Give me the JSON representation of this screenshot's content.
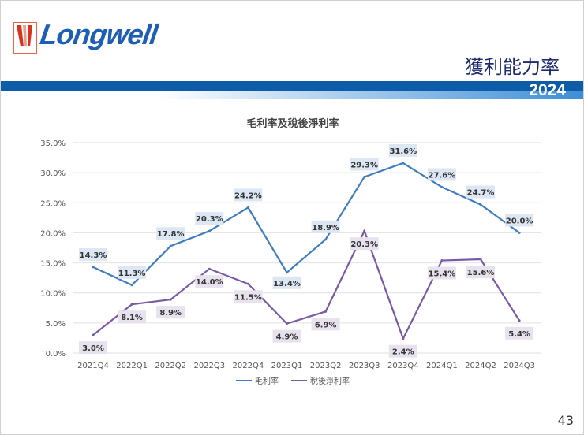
{
  "header": {
    "logo_text": "Longwell",
    "title": "獲利能力率",
    "year": "2024"
  },
  "page_number": "43",
  "colors": {
    "gross_margin": "#3f7dc1",
    "net_margin": "#7a5aa6",
    "header_bar": "#0c5ca8",
    "title": "#1e2a6e"
  },
  "chart_data": {
    "type": "line",
    "title": "毛利率及稅後淨利率",
    "categories": [
      "2021Q4",
      "2022Q1",
      "2022Q2",
      "2022Q3",
      "2022Q4",
      "2023Q1",
      "2023Q2",
      "2023Q3",
      "2023Q4",
      "2024Q1",
      "2024Q2",
      "2024Q3"
    ],
    "yticks": [
      "0.0%",
      "5.0%",
      "10.0%",
      "15.0%",
      "20.0%",
      "25.0%",
      "30.0%",
      "35.0%"
    ],
    "ylim": [
      0,
      35
    ],
    "grid": true,
    "legend": "bottom",
    "series": [
      {
        "name": "毛利率",
        "values": [
          14.3,
          11.3,
          17.8,
          20.3,
          24.2,
          13.4,
          18.9,
          29.3,
          31.6,
          27.6,
          24.7,
          20.0
        ],
        "labels": [
          "14.3%",
          "11.3%",
          "17.8%",
          "20.3%",
          "24.2%",
          "13.4%",
          "18.9%",
          "29.3%",
          "31.6%",
          "27.6%",
          "24.7%",
          "20.0%"
        ]
      },
      {
        "name": "稅後淨利率",
        "values": [
          3.0,
          8.1,
          8.9,
          14.0,
          11.5,
          4.9,
          6.9,
          20.3,
          2.4,
          15.4,
          15.6,
          5.4
        ],
        "labels": [
          "3.0%",
          "8.1%",
          "8.9%",
          "14.0%",
          "11.5%",
          "4.9%",
          "6.9%",
          "20.3%",
          "2.4%",
          "15.4%",
          "15.6%",
          "5.4%"
        ]
      }
    ]
  }
}
